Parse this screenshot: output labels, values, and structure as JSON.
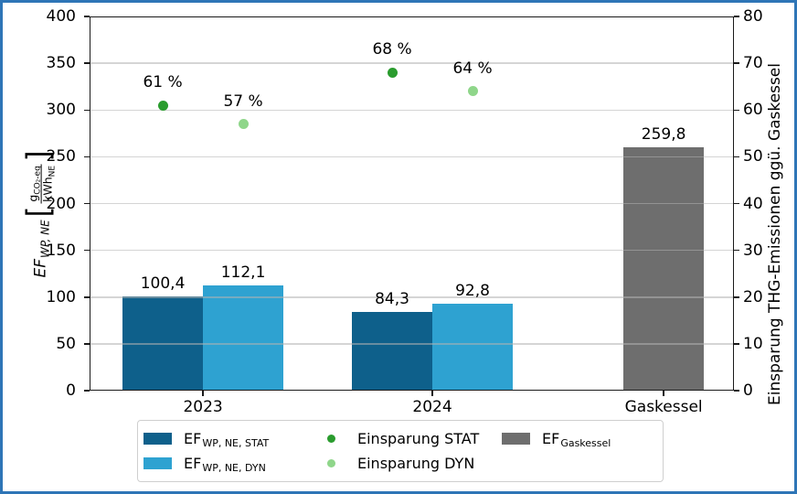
{
  "figure": {
    "border_color": "#2e75b6",
    "background": "#ffffff"
  },
  "chart_data": {
    "type": "bar",
    "categories": [
      "2023",
      "2024",
      "Gaskessel"
    ],
    "series": [
      {
        "name": "EF WP,NE,STAT",
        "kind": "bar",
        "axis": "left",
        "slot": "stat",
        "color": "#0e608b",
        "values": [
          100.4,
          84.3,
          null
        ],
        "value_labels": [
          "100,4",
          "84,3",
          null
        ]
      },
      {
        "name": "EF WP,NE,DYN",
        "kind": "bar",
        "axis": "left",
        "slot": "dyn",
        "color": "#2ea2d1",
        "values": [
          112.1,
          92.8,
          null
        ],
        "value_labels": [
          "112,1",
          "92,8",
          null
        ]
      },
      {
        "name": "EF Gaskessel",
        "kind": "bar",
        "axis": "left",
        "slot": "center",
        "color": "#6e6e6e",
        "values": [
          null,
          null,
          259.8
        ],
        "value_labels": [
          null,
          null,
          "259,8"
        ]
      },
      {
        "name": "Einsparung STAT",
        "kind": "scatter",
        "axis": "right",
        "slot": "stat",
        "color": "#2a9c2e",
        "values": [
          61,
          68,
          null
        ],
        "value_labels": [
          "61 %",
          "68 %",
          null
        ]
      },
      {
        "name": "Einsparung DYN",
        "kind": "scatter",
        "axis": "right",
        "slot": "dyn",
        "color": "#8fd68a",
        "values": [
          57,
          64,
          null
        ],
        "value_labels": [
          "57 %",
          "64 %",
          null
        ]
      }
    ],
    "left_axis": {
      "range": [
        0,
        400
      ],
      "ticks": [
        0,
        50,
        100,
        150,
        200,
        250,
        300,
        350,
        400
      ],
      "tick_labels": [
        "0",
        "50",
        "100",
        "150",
        "200",
        "250",
        "300",
        "350",
        "400"
      ],
      "label": {
        "symbol": "EF",
        "symbol_sub": "WP, NE",
        "bracket_open": "[",
        "bracket_close": "]",
        "unit_numerator": "g",
        "unit_numerator_sub": "CO₂-eq",
        "unit_denominator": "kWh",
        "unit_denominator_sub": "NE"
      }
    },
    "right_axis": {
      "range": [
        0,
        80
      ],
      "ticks": [
        0,
        10,
        20,
        30,
        40,
        50,
        60,
        70,
        80
      ],
      "tick_labels": [
        "0",
        "10",
        "20",
        "30",
        "40",
        "50",
        "60",
        "70",
        "80"
      ],
      "label": "Einsparung THG-Emissionen ggü. Gaskessel"
    },
    "grid": true,
    "legend": {
      "position": "bottom",
      "items": [
        {
          "marker": "swatch",
          "color": "#0e608b",
          "label_main": "EF",
          "label_sub": "WP, NE, STAT"
        },
        {
          "marker": "swatch",
          "color": "#2ea2d1",
          "label_main": "EF",
          "label_sub": "WP, NE, DYN"
        },
        {
          "marker": "dot",
          "color": "#2a9c2e",
          "label_main": "Einsparung STAT",
          "label_sub": ""
        },
        {
          "marker": "dot",
          "color": "#8fd68a",
          "label_main": "Einsparung DYN",
          "label_sub": ""
        },
        {
          "marker": "swatch",
          "color": "#6e6e6e",
          "label_main": "EF",
          "label_sub": "Gaskessel"
        }
      ]
    }
  }
}
